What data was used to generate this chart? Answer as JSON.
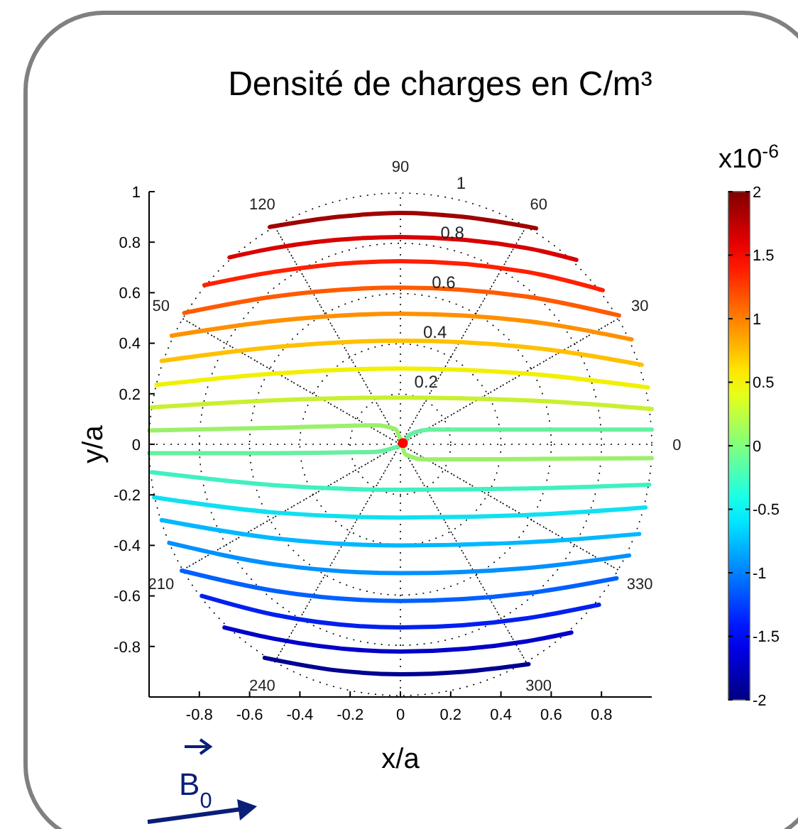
{
  "chart_data": {
    "type": "line",
    "title": "Densité de charges en C/m³",
    "xlabel": "x/a",
    "ylabel": "y/a",
    "clabel": "x10$^{-6}$",
    "xlim": [
      -1,
      1
    ],
    "ylim": [
      -1,
      1
    ],
    "xticks": [
      -0.8,
      -0.6,
      -0.4,
      -0.2,
      0,
      0.2,
      0.4,
      0.6,
      0.8
    ],
    "yticks": [
      -0.8,
      -0.6,
      -0.4,
      -0.2,
      0,
      0.2,
      0.4,
      0.6,
      0.8,
      1
    ],
    "clim": [
      -2,
      2
    ],
    "cticks": [
      -2,
      -1.5,
      -1,
      -0.5,
      0,
      0.5,
      1,
      1.5,
      2
    ],
    "series": [
      {
        "color": "#a00000",
        "x": [
          -0.52,
          -0.25,
          0,
          0.25,
          0.54
        ],
        "values": [
          0.86,
          0.9,
          0.916,
          0.9,
          0.855
        ]
      },
      {
        "color": "#d80000",
        "x": [
          -0.68,
          -0.5,
          0,
          0.5,
          0.7
        ],
        "values": [
          0.74,
          0.777,
          0.82,
          0.777,
          0.73
        ]
      },
      {
        "color": "#ff2000",
        "x": [
          -0.78,
          -0.5,
          0,
          0.5,
          0.805
        ],
        "values": [
          0.63,
          0.683,
          0.725,
          0.683,
          0.61
        ]
      },
      {
        "color": "#ff5a00",
        "x": [
          -0.86,
          -0.5,
          0,
          0.5,
          0.87
        ],
        "values": [
          0.52,
          0.585,
          0.62,
          0.585,
          0.51
        ]
      },
      {
        "color": "#ff9000",
        "x": [
          -0.91,
          -0.5,
          0,
          0.5,
          0.92
        ],
        "values": [
          0.43,
          0.488,
          0.517,
          0.488,
          0.415
        ]
      },
      {
        "color": "#ffc000",
        "x": [
          -0.95,
          -0.5,
          0,
          0.5,
          0.96
        ],
        "values": [
          0.33,
          0.385,
          0.41,
          0.385,
          0.315
        ]
      },
      {
        "color": "#f0f000",
        "x": [
          -0.97,
          -0.5,
          0,
          0.5,
          0.985
        ],
        "values": [
          0.235,
          0.28,
          0.3,
          0.28,
          0.225
        ]
      },
      {
        "color": "#c8f030",
        "x": [
          -0.99,
          -0.5,
          0,
          0.5,
          1
        ],
        "values": [
          0.146,
          0.174,
          0.185,
          0.174,
          0.14
        ]
      },
      {
        "color": "#9bf06a",
        "x": [
          -1,
          -0.5,
          -0.1,
          -0.02,
          0,
          0.02,
          0.1,
          0.5,
          1
        ],
        "values": [
          0.055,
          0.065,
          0.075,
          0.06,
          0.02,
          -0.04,
          -0.06,
          -0.058,
          -0.055
        ]
      },
      {
        "color": "#66f0a0",
        "x": [
          -1,
          -0.5,
          -0.1,
          -0.03,
          0.01,
          0.04,
          0.12,
          0.5,
          1
        ],
        "values": [
          -0.035,
          -0.035,
          -0.03,
          -0.015,
          0,
          0.04,
          0.058,
          0.058,
          0.058
        ]
      },
      {
        "color": "#40f0c0",
        "x": [
          -0.99,
          -0.5,
          0,
          0.5,
          0.99
        ],
        "values": [
          -0.11,
          -0.162,
          -0.18,
          -0.175,
          -0.16
        ]
      },
      {
        "color": "#10e0f0",
        "x": [
          -0.98,
          -0.5,
          0,
          0.5,
          0.975
        ],
        "values": [
          -0.21,
          -0.27,
          -0.29,
          -0.28,
          -0.25
        ]
      },
      {
        "color": "#00b8ff",
        "x": [
          -0.95,
          -0.5,
          0,
          0.5,
          0.95
        ],
        "values": [
          -0.3,
          -0.372,
          -0.4,
          -0.388,
          -0.355
        ]
      },
      {
        "color": "#0090ff",
        "x": [
          -0.92,
          -0.5,
          0,
          0.5,
          0.91
        ],
        "values": [
          -0.39,
          -0.475,
          -0.51,
          -0.49,
          -0.44
        ]
      },
      {
        "color": "#0060ff",
        "x": [
          -0.87,
          -0.5,
          0,
          0.5,
          0.86
        ],
        "values": [
          -0.5,
          -0.58,
          -0.62,
          -0.59,
          -0.53
        ]
      },
      {
        "color": "#0020f0",
        "x": [
          -0.79,
          -0.5,
          0,
          0.5,
          0.79
        ],
        "values": [
          -0.6,
          -0.675,
          -0.725,
          -0.689,
          -0.635
        ]
      },
      {
        "color": "#0000c8",
        "x": [
          -0.7,
          -0.5,
          0,
          0.5,
          0.68
        ],
        "values": [
          -0.725,
          -0.77,
          -0.82,
          -0.78,
          -0.745
        ]
      },
      {
        "color": "#000090",
        "x": [
          -0.54,
          -0.25,
          0,
          0.25,
          0.51
        ],
        "values": [
          -0.845,
          -0.895,
          -0.91,
          -0.9,
          -0.87
        ]
      },
      {
        "type": "scatter",
        "color": "#ff0000",
        "x": [
          0.01
        ],
        "values": [
          0.005
        ]
      }
    ],
    "annotations": [
      "0",
      "30",
      "60",
      "90",
      "120",
      "50",
      "210",
      "240",
      "300",
      "330",
      "0.2",
      "0.4",
      "0.6",
      "0.8",
      "1",
      "B$_{0}$"
    ]
  }
}
